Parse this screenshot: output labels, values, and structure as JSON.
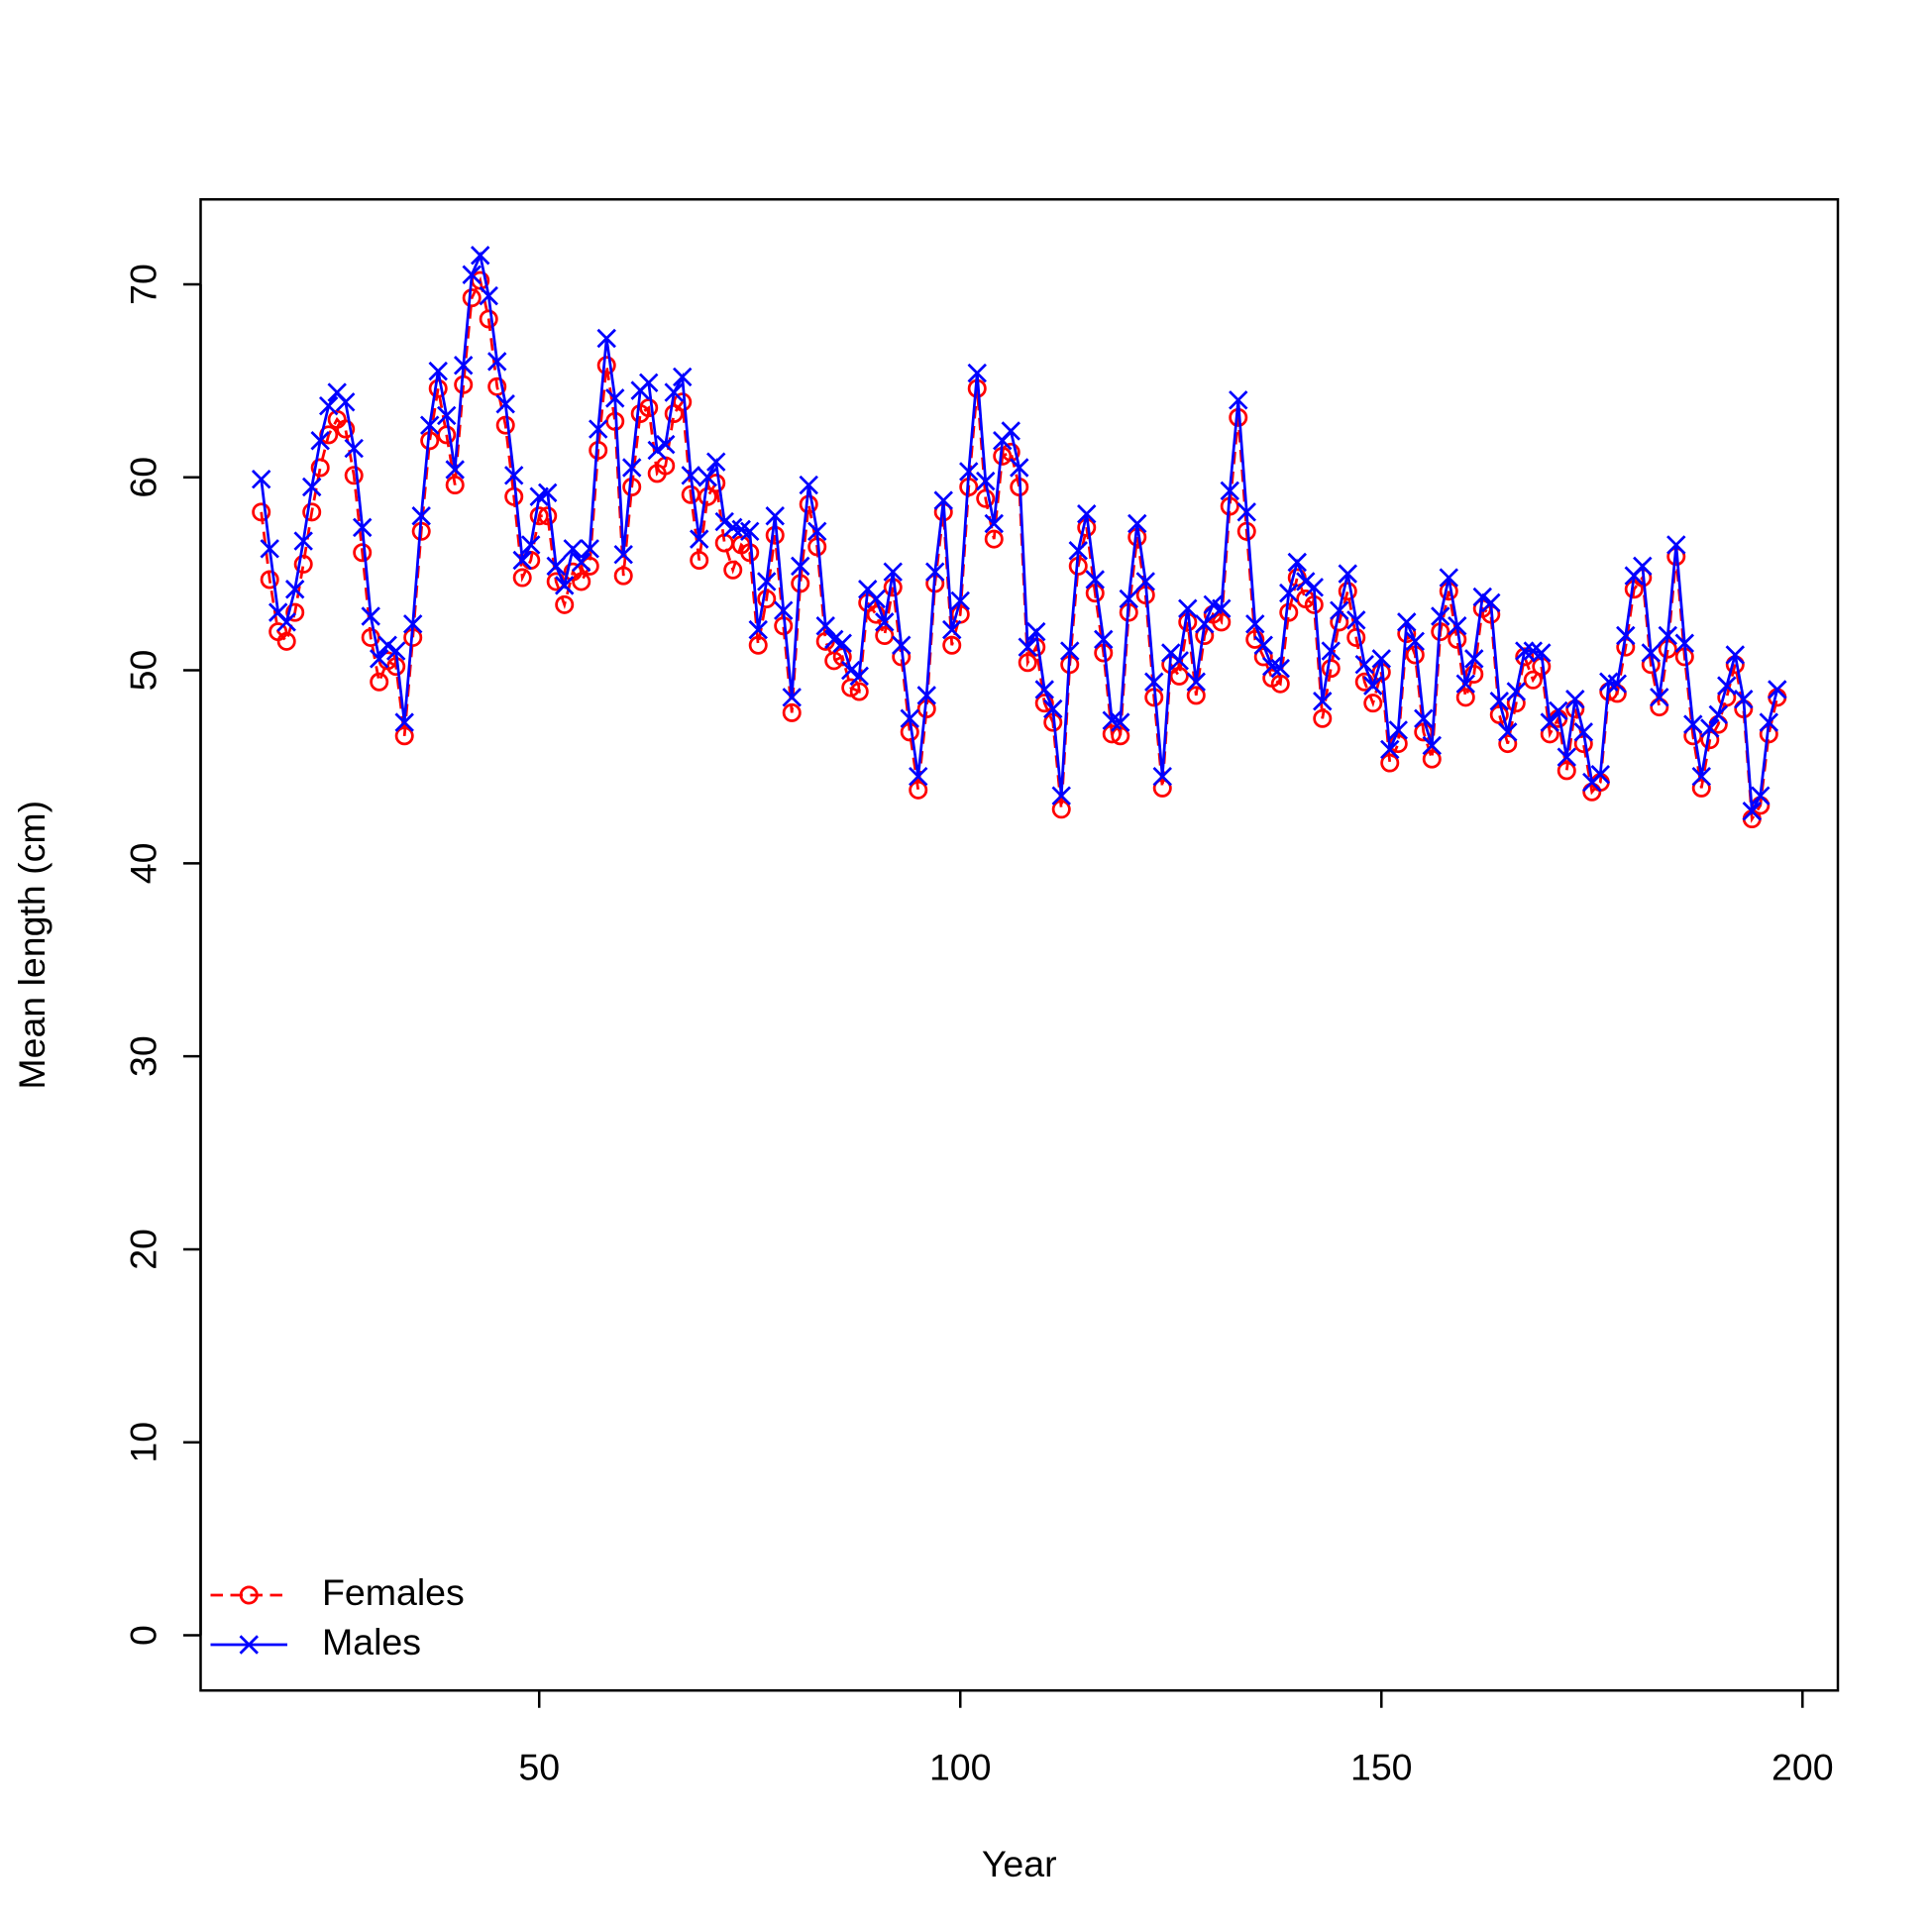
{
  "chart_data": {
    "type": "line",
    "xlabel": "Year",
    "ylabel": "Mean length (cm)",
    "x": [
      17,
      18,
      19,
      20,
      21,
      22,
      23,
      24,
      25,
      26,
      27,
      28,
      29,
      30,
      31,
      32,
      33,
      34,
      35,
      36,
      37,
      38,
      39,
      40,
      41,
      42,
      43,
      44,
      45,
      46,
      47,
      48,
      49,
      50,
      51,
      52,
      53,
      54,
      55,
      56,
      57,
      58,
      59,
      60,
      61,
      62,
      63,
      64,
      65,
      66,
      67,
      68,
      69,
      70,
      71,
      72,
      73,
      74,
      75,
      76,
      77,
      78,
      79,
      80,
      81,
      82,
      83,
      84,
      85,
      86,
      87,
      88,
      89,
      90,
      91,
      92,
      93,
      94,
      95,
      96,
      97,
      98,
      99,
      100,
      101,
      102,
      103,
      104,
      105,
      106,
      107,
      108,
      109,
      110,
      111,
      112,
      113,
      114,
      115,
      116,
      117,
      118,
      119,
      120,
      121,
      122,
      123,
      124,
      125,
      126,
      127,
      128,
      129,
      130,
      131,
      132,
      133,
      134,
      135,
      136,
      137,
      138,
      139,
      140,
      141,
      142,
      143,
      144,
      145,
      146,
      147,
      148,
      149,
      150,
      151,
      152,
      153,
      154,
      155,
      156,
      157,
      158,
      159,
      160,
      161,
      162,
      163,
      164,
      165,
      166,
      167,
      168,
      169,
      170,
      171,
      172,
      173,
      174,
      175,
      176,
      177,
      178,
      179,
      180,
      181,
      182,
      183,
      184,
      185,
      186,
      187,
      188,
      189,
      190,
      191,
      192,
      193,
      194,
      195,
      196,
      197
    ],
    "series": [
      {
        "name": "Females",
        "color": "#ff0000",
        "linestyle": "dashed",
        "marker": "circle",
        "values": [
          58.2,
          54.7,
          52.0,
          51.5,
          53.0,
          55.5,
          58.2,
          60.5,
          62.2,
          63.0,
          62.5,
          60.1,
          56.1,
          51.7,
          49.4,
          50.5,
          50.2,
          46.6,
          51.7,
          57.2,
          61.9,
          64.6,
          62.2,
          59.6,
          64.8,
          69.3,
          70.2,
          68.2,
          64.7,
          62.7,
          59.0,
          54.8,
          55.7,
          58.0,
          58.0,
          54.6,
          53.4,
          55.1,
          54.6,
          55.4,
          61.4,
          65.8,
          62.9,
          54.9,
          59.5,
          63.3,
          63.6,
          60.2,
          60.6,
          63.3,
          63.9,
          59.1,
          55.7,
          59.0,
          59.7,
          56.6,
          55.2,
          56.5,
          56.1,
          51.3,
          53.7,
          57.0,
          52.3,
          47.8,
          54.5,
          58.6,
          56.4,
          51.5,
          50.5,
          50.7,
          49.1,
          48.9,
          53.5,
          52.9,
          51.8,
          54.3,
          50.7,
          46.8,
          43.8,
          48.0,
          54.5,
          58.2,
          51.3,
          52.9,
          59.5,
          64.6,
          58.9,
          56.8,
          61.1,
          61.3,
          59.5,
          50.4,
          51.2,
          48.3,
          47.3,
          42.8,
          50.3,
          55.4,
          57.4,
          54.0,
          50.9,
          46.7,
          46.6,
          53.0,
          56.9,
          53.9,
          48.6,
          43.9,
          50.3,
          49.7,
          52.5,
          48.7,
          51.8,
          52.9,
          52.5,
          58.5,
          63.1,
          57.2,
          51.6,
          50.7,
          49.6,
          49.3,
          53.0,
          54.8,
          53.7,
          53.4,
          47.5,
          50.1,
          52.5,
          54.1,
          51.7,
          49.4,
          48.3,
          49.9,
          45.2,
          46.2,
          51.9,
          50.8,
          46.8,
          45.4,
          52.0,
          54.1,
          51.6,
          48.6,
          49.8,
          53.2,
          52.9,
          47.7,
          46.2,
          48.3,
          50.7,
          49.5,
          50.2,
          46.7,
          47.5,
          44.8,
          48.0,
          46.2,
          43.7,
          44.2,
          48.9,
          48.8,
          51.2,
          54.2,
          54.8,
          50.3,
          48.1,
          51.1,
          55.9,
          50.7,
          46.6,
          43.9,
          46.4,
          47.2,
          48.6,
          50.3,
          48.0,
          42.3,
          43.0,
          46.7,
          48.6
        ]
      },
      {
        "name": "Males",
        "color": "#0000ff",
        "linestyle": "solid",
        "marker": "x",
        "values": [
          59.9,
          56.3,
          53.0,
          52.5,
          54.2,
          56.7,
          59.5,
          61.9,
          63.7,
          64.4,
          63.9,
          61.5,
          57.4,
          52.8,
          50.6,
          51.3,
          51.0,
          47.3,
          52.4,
          58.0,
          62.7,
          65.5,
          63.2,
          60.4,
          65.8,
          70.5,
          71.5,
          69.4,
          66.0,
          63.8,
          60.1,
          55.7,
          56.5,
          59.0,
          59.2,
          55.4,
          54.4,
          56.3,
          55.6,
          56.3,
          62.5,
          67.2,
          64.1,
          56.0,
          60.5,
          64.5,
          64.9,
          61.4,
          61.7,
          64.4,
          65.2,
          60.1,
          56.8,
          60.0,
          60.8,
          57.7,
          57.4,
          57.3,
          57.2,
          52.1,
          54.6,
          58.0,
          53.1,
          48.6,
          55.4,
          59.6,
          57.2,
          52.3,
          51.6,
          51.4,
          50.0,
          49.7,
          54.2,
          53.7,
          52.5,
          55.1,
          51.3,
          47.5,
          44.5,
          48.7,
          55.1,
          58.8,
          52.1,
          53.6,
          60.3,
          65.4,
          59.8,
          57.6,
          61.9,
          62.4,
          60.5,
          51.2,
          52.0,
          49.0,
          48.0,
          43.5,
          51.0,
          56.2,
          58.1,
          54.7,
          51.6,
          47.4,
          47.3,
          53.7,
          57.6,
          54.6,
          49.4,
          44.5,
          50.9,
          50.5,
          53.2,
          49.4,
          52.4,
          53.4,
          53.2,
          59.3,
          64.0,
          58.2,
          52.4,
          51.3,
          50.2,
          50.1,
          54.0,
          55.6,
          54.6,
          54.3,
          48.4,
          51.0,
          53.1,
          55.0,
          52.6,
          50.3,
          49.2,
          50.6,
          45.9,
          46.9,
          52.5,
          51.5,
          47.5,
          46.1,
          52.8,
          54.8,
          52.3,
          49.3,
          50.6,
          53.8,
          53.5,
          48.4,
          46.8,
          48.9,
          51.0,
          51.0,
          50.9,
          47.3,
          47.9,
          45.5,
          48.5,
          46.8,
          44.2,
          44.6,
          49.4,
          49.3,
          51.8,
          54.9,
          55.4,
          50.9,
          48.6,
          51.8,
          56.5,
          51.4,
          47.2,
          44.5,
          47.0,
          47.7,
          49.2,
          50.8,
          48.5,
          42.7,
          43.5,
          47.3,
          49.0
        ]
      }
    ],
    "xlim": [
      9.8,
      204.2
    ],
    "ylim": [
      -2.86,
      74.4
    ],
    "xticks": [
      50,
      100,
      150,
      200
    ],
    "yticks": [
      0,
      10,
      20,
      30,
      40,
      50,
      60,
      70
    ],
    "legend": "bottomleft"
  }
}
